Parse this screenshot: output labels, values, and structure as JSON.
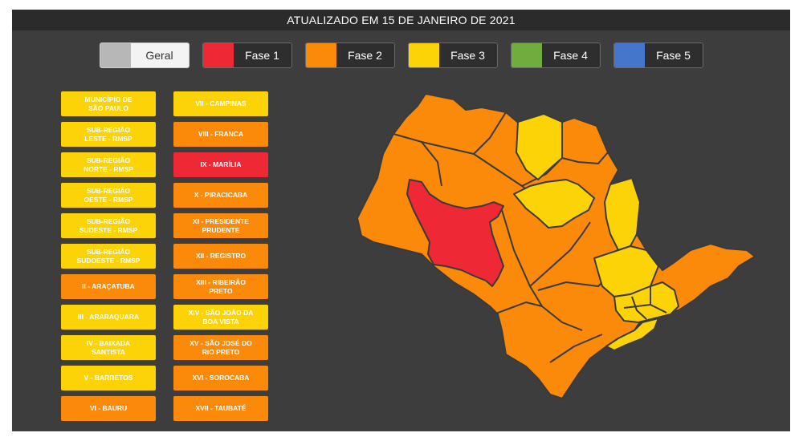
{
  "title": "ATUALIZADO EM 15 DE JANEIRO DE 2021",
  "colors": {
    "fase1": "#ee2835",
    "fase2": "#fb8a0a",
    "fase3": "#fcd307",
    "fase4": "#71ac3e",
    "fase5": "#4477cc",
    "geral": "#b7b7b7"
  },
  "legend": [
    {
      "label": "Geral",
      "color": "#b7b7b7"
    },
    {
      "label": "Fase 1",
      "color": "#ee2835"
    },
    {
      "label": "Fase 2",
      "color": "#fb8a0a"
    },
    {
      "label": "Fase 3",
      "color": "#fcd307"
    },
    {
      "label": "Fase 4",
      "color": "#71ac3e"
    },
    {
      "label": "Fase 5",
      "color": "#4477cc"
    }
  ],
  "regions": [
    {
      "label": "MUNICÍPIO DE\nSÃO PAULO",
      "phase": "Fase 3"
    },
    {
      "label": "VII - CAMPINAS",
      "phase": "Fase 3"
    },
    {
      "label": "SUB-REGIÃO\nLESTE - RMSP",
      "phase": "Fase 3"
    },
    {
      "label": "VIII - FRANCA",
      "phase": "Fase 2"
    },
    {
      "label": "SUB-REGIÃO\nNORTE - RMSP",
      "phase": "Fase 3"
    },
    {
      "label": "IX - MARÍLIA",
      "phase": "Fase 1"
    },
    {
      "label": "SUB-REGIÃO\nOESTE - RMSP",
      "phase": "Fase 3"
    },
    {
      "label": "X - PIRACICABA",
      "phase": "Fase 2"
    },
    {
      "label": "SUB-REGIÃO\nSUDESTE - RMSP",
      "phase": "Fase 3"
    },
    {
      "label": "XI - PRESIDENTE\nPRUDENTE",
      "phase": "Fase 2"
    },
    {
      "label": "SUB-REGIÃO\nSUDOESTE - RMSP",
      "phase": "Fase 3"
    },
    {
      "label": "XII - REGISTRO",
      "phase": "Fase 2"
    },
    {
      "label": "II - ARAÇATUBA",
      "phase": "Fase 2"
    },
    {
      "label": "XIII - RIBEIRÃO\nPRETO",
      "phase": "Fase 2"
    },
    {
      "label": "III - ARARAQUARA",
      "phase": "Fase 3"
    },
    {
      "label": "XIV - SÃO JOÃO DA\nBOA VISTA",
      "phase": "Fase 3"
    },
    {
      "label": "IV - BAIXADA\nSANTISTA",
      "phase": "Fase 3"
    },
    {
      "label": "XV - SÃO JOSÉ DO\nRIO PRETO",
      "phase": "Fase 2"
    },
    {
      "label": "V - BARRETOS",
      "phase": "Fase 3"
    },
    {
      "label": "XVI - SOROCABA",
      "phase": "Fase 2"
    },
    {
      "label": "VI - BAURU",
      "phase": "Fase 2"
    },
    {
      "label": "XVII - TAUBATÉ",
      "phase": "Fase 2"
    }
  ],
  "map_regions": [
    {
      "name": "III - ARARAQUARA",
      "phase": "Fase 3"
    },
    {
      "name": "VII - CAMPINAS",
      "phase": "Fase 3"
    },
    {
      "name": "VIII - FRANCA",
      "phase": "Fase 2"
    },
    {
      "name": "IX - MARÍLIA",
      "phase": "Fase 1"
    },
    {
      "name": "V - BARRETOS",
      "phase": "Fase 3"
    },
    {
      "name": "XIV - SÃO JOÃO DA BOA VISTA",
      "phase": "Fase 3"
    },
    {
      "name": "RMSP",
      "phase": "Fase 3"
    },
    {
      "name": "IV - BAIXADA SANTISTA",
      "phase": "Fase 3"
    }
  ]
}
